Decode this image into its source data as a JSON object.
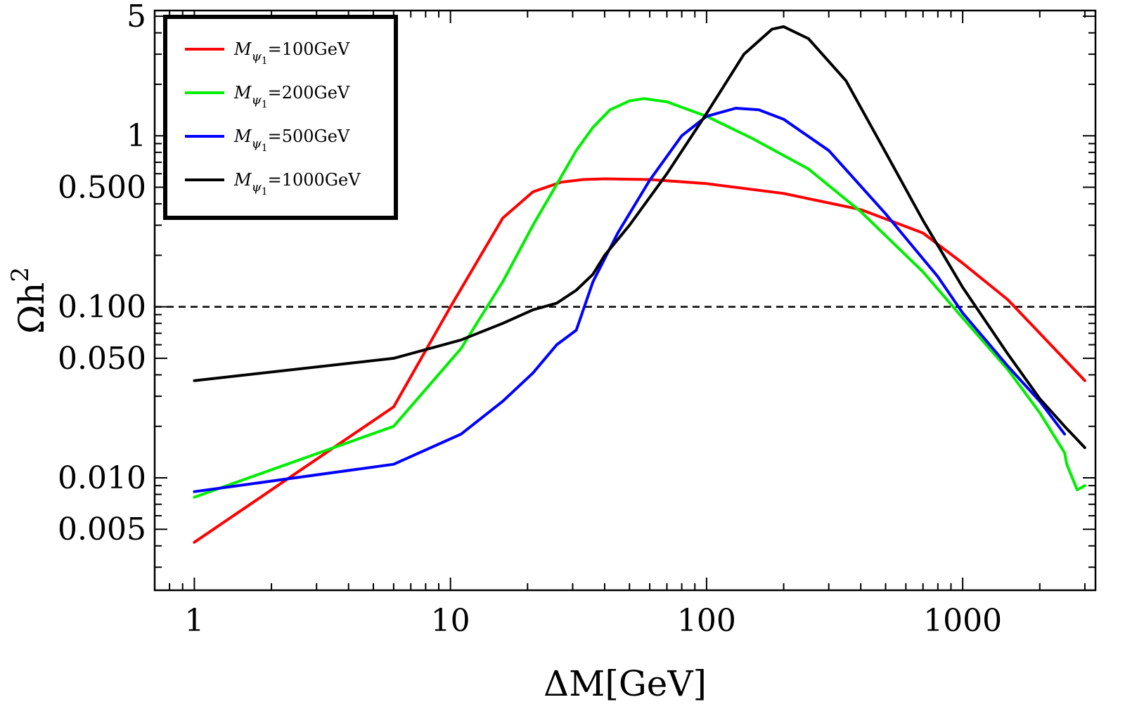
{
  "chart_data": {
    "type": "line",
    "title": "",
    "xlabel": "ΔM[GeV]",
    "ylabel": "Ωh",
    "ylabel_sup": "2",
    "xscale": "log",
    "yscale": "log",
    "xlim": [
      0.7,
      3300
    ],
    "ylim": [
      0.0022,
      5.4
    ],
    "grid": false,
    "legend_position": "top-left",
    "x_tick_values": [
      1,
      10,
      100,
      1000
    ],
    "x_tick_labels": [
      "1",
      "10",
      "100",
      "1000"
    ],
    "y_tick_values": [
      0.005,
      0.01,
      0.05,
      0.1,
      0.5,
      1,
      5
    ],
    "y_tick_labels": [
      "0.005",
      "0.010",
      "0.050",
      "0.100",
      "0.500",
      "1",
      "5"
    ],
    "reference_line": {
      "axis": "y",
      "value": 0.1,
      "style": "dashed",
      "color": "#000000"
    },
    "series": [
      {
        "name": "M_ψ1=100GeV",
        "legend_symbol": "M",
        "legend_sub": "ψ",
        "legend_subsub": "1",
        "legend_rest": "=100GeV",
        "color": "#ff0000",
        "x": [
          1,
          6,
          10,
          16,
          21,
          27,
          33,
          40,
          60,
          100,
          200,
          400,
          700,
          1000,
          1500,
          2000,
          3000
        ],
        "y": [
          0.0042,
          0.026,
          0.1,
          0.33,
          0.47,
          0.535,
          0.555,
          0.56,
          0.555,
          0.525,
          0.46,
          0.37,
          0.27,
          0.18,
          0.11,
          0.07,
          0.037
        ]
      },
      {
        "name": "M_ψ1=200GeV",
        "legend_symbol": "M",
        "legend_sub": "ψ",
        "legend_subsub": "1",
        "legend_rest": "=200GeV",
        "color": "#00ee00",
        "x": [
          1,
          6,
          11,
          16,
          21,
          26,
          31,
          36,
          42,
          50,
          57,
          70,
          100,
          150,
          250,
          400,
          700,
          1000,
          1500,
          2000,
          2500,
          2550,
          2800,
          3000
        ],
        "y": [
          0.0077,
          0.02,
          0.057,
          0.14,
          0.3,
          0.52,
          0.82,
          1.12,
          1.42,
          1.6,
          1.65,
          1.58,
          1.3,
          0.97,
          0.64,
          0.36,
          0.16,
          0.086,
          0.043,
          0.024,
          0.014,
          0.012,
          0.0085,
          0.009
        ]
      },
      {
        "name": "M_ψ1=500GeV",
        "legend_symbol": "M",
        "legend_sub": "ψ",
        "legend_subsub": "1",
        "legend_rest": "=500GeV",
        "color": "#0000ff",
        "x": [
          1,
          6,
          11,
          16,
          21,
          26,
          31,
          36,
          45,
          60,
          80,
          100,
          130,
          160,
          200,
          300,
          500,
          800,
          1000,
          1500,
          2000,
          2500
        ],
        "y": [
          0.0083,
          0.012,
          0.018,
          0.028,
          0.041,
          0.06,
          0.073,
          0.14,
          0.27,
          0.55,
          1.0,
          1.3,
          1.45,
          1.42,
          1.25,
          0.82,
          0.35,
          0.15,
          0.092,
          0.045,
          0.028,
          0.018
        ]
      },
      {
        "name": "M_ψ1=1000GeV",
        "legend_symbol": "M",
        "legend_sub": "ψ",
        "legend_subsub": "1",
        "legend_rest": "=1000GeV",
        "color": "#000000",
        "x": [
          1,
          6,
          11,
          16,
          21,
          26,
          31,
          36,
          40,
          50,
          70,
          100,
          140,
          180,
          200,
          250,
          350,
          500,
          700,
          1000,
          1500,
          2000,
          2500,
          3000
        ],
        "y": [
          0.037,
          0.05,
          0.064,
          0.08,
          0.096,
          0.105,
          0.125,
          0.155,
          0.2,
          0.3,
          0.6,
          1.35,
          3.0,
          4.2,
          4.35,
          3.7,
          2.1,
          0.8,
          0.32,
          0.13,
          0.053,
          0.029,
          0.02,
          0.015
        ]
      }
    ]
  }
}
